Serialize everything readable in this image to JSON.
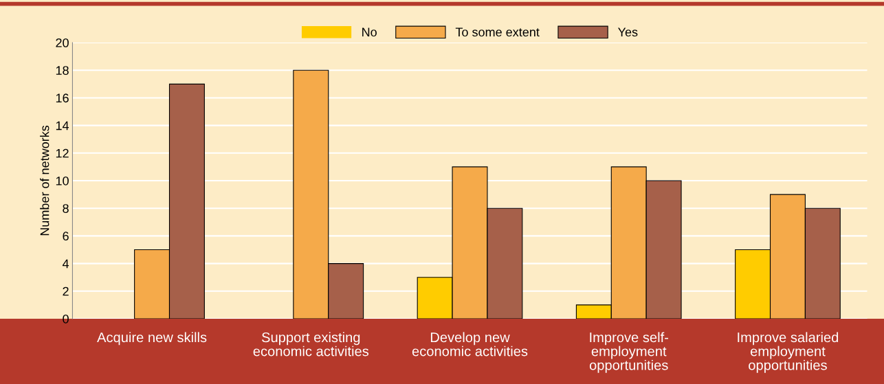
{
  "chart_data": {
    "type": "bar",
    "ylabel": "Number of networks",
    "categories": [
      "Acquire new skills",
      "Support existing\neconomic activities",
      "Develop new\neconomic activities",
      "Improve self-\nemployment\nopportunities",
      "Improve salaried\nemployment\nopportunities"
    ],
    "series": [
      {
        "name": "No",
        "color": "#ffcc00",
        "values": [
          0,
          0,
          3,
          1,
          5
        ]
      },
      {
        "name": "To some extent",
        "color": "#f5aa4a",
        "values": [
          5,
          18,
          11,
          11,
          9
        ]
      },
      {
        "name": "Yes",
        "color": "#a6604a",
        "values": [
          17,
          4,
          8,
          10,
          8
        ]
      }
    ],
    "ylim": [
      0,
      20
    ],
    "yticks": [
      0,
      2,
      4,
      6,
      8,
      10,
      12,
      14,
      16,
      18,
      20
    ],
    "grid": "y",
    "legend": "top"
  }
}
